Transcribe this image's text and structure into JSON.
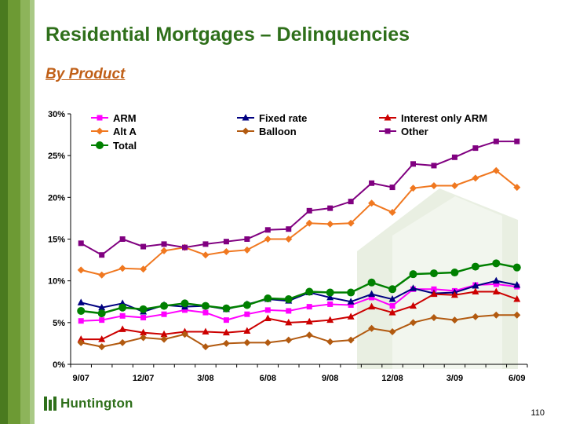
{
  "slide": {
    "title": "Residential Mortgages – Delinquencies",
    "subtitle": "By Product",
    "logo_text": "Huntington",
    "page_number": "110"
  },
  "chart_data": {
    "type": "line",
    "ylim": [
      0,
      30
    ],
    "yticks": [
      "0%",
      "5%",
      "10%",
      "15%",
      "20%",
      "25%",
      "30%"
    ],
    "x_tick_labels": [
      "9/07",
      "12/07",
      "3/08",
      "6/08",
      "9/08",
      "12/08",
      "3/09",
      "6/09"
    ],
    "x_tick_positions": [
      0,
      3,
      6,
      9,
      12,
      15,
      18,
      21
    ],
    "n_points": 22,
    "legend_placement": "top",
    "grid": false,
    "series": [
      {
        "name": "ARM",
        "color": "#ff00ff",
        "marker": "square",
        "values": [
          5.2,
          5.3,
          5.8,
          5.6,
          6.0,
          6.5,
          6.2,
          5.3,
          6.0,
          6.5,
          6.4,
          6.9,
          7.2,
          7.1,
          8.0,
          7.0,
          9.0,
          9.0,
          8.8,
          9.5,
          9.6,
          9.3
        ]
      },
      {
        "name": "Fixed rate",
        "color": "#000080",
        "marker": "triangle",
        "values": [
          7.4,
          6.8,
          7.3,
          6.3,
          7.1,
          6.9,
          7.0,
          6.6,
          7.2,
          7.8,
          7.6,
          8.6,
          8.0,
          7.5,
          8.4,
          7.8,
          9.1,
          8.5,
          8.6,
          9.4,
          10.0,
          9.5
        ]
      },
      {
        "name": "Interest only ARM",
        "color": "#cc0000",
        "marker": "triangle",
        "values": [
          3.0,
          3.0,
          4.2,
          3.8,
          3.6,
          3.9,
          3.9,
          3.8,
          4.0,
          5.5,
          5.0,
          5.1,
          5.3,
          5.7,
          6.9,
          6.2,
          7.0,
          8.4,
          8.3,
          8.7,
          8.7,
          7.8
        ]
      },
      {
        "name": "Alt A",
        "color": "#f07820",
        "marker": "diamond",
        "values": [
          11.3,
          10.7,
          11.5,
          11.4,
          13.6,
          14.0,
          13.1,
          13.5,
          13.7,
          15.0,
          15.0,
          16.9,
          16.8,
          16.9,
          19.3,
          18.2,
          21.1,
          21.4,
          21.4,
          22.3,
          23.2,
          21.2
        ]
      },
      {
        "name": "Balloon",
        "color": "#b25a10",
        "marker": "diamond",
        "values": [
          2.6,
          2.1,
          2.6,
          3.2,
          3.0,
          3.6,
          2.1,
          2.5,
          2.6,
          2.6,
          2.9,
          3.5,
          2.7,
          2.9,
          4.3,
          3.9,
          5.0,
          5.6,
          5.3,
          5.7,
          5.9,
          5.9
        ]
      },
      {
        "name": "Other",
        "color": "#800080",
        "marker": "square",
        "values": [
          14.5,
          13.1,
          15.0,
          14.1,
          14.4,
          14.0,
          14.4,
          14.7,
          15.0,
          16.1,
          16.2,
          18.4,
          18.7,
          19.5,
          21.7,
          21.2,
          24.0,
          23.8,
          24.8,
          25.9,
          26.7,
          26.7
        ]
      },
      {
        "name": "Total",
        "color": "#008000",
        "marker": "circle",
        "values": [
          6.4,
          6.1,
          6.8,
          6.6,
          7.0,
          7.3,
          7.0,
          6.7,
          7.1,
          7.9,
          7.8,
          8.7,
          8.6,
          8.6,
          9.8,
          9.0,
          10.8,
          10.9,
          11.0,
          11.7,
          12.1,
          11.6
        ]
      }
    ],
    "legend_rows": [
      [
        "ARM",
        "Fixed rate",
        "Interest only ARM"
      ],
      [
        "Alt A",
        "Balloon",
        "Other"
      ],
      [
        "Total"
      ]
    ]
  }
}
